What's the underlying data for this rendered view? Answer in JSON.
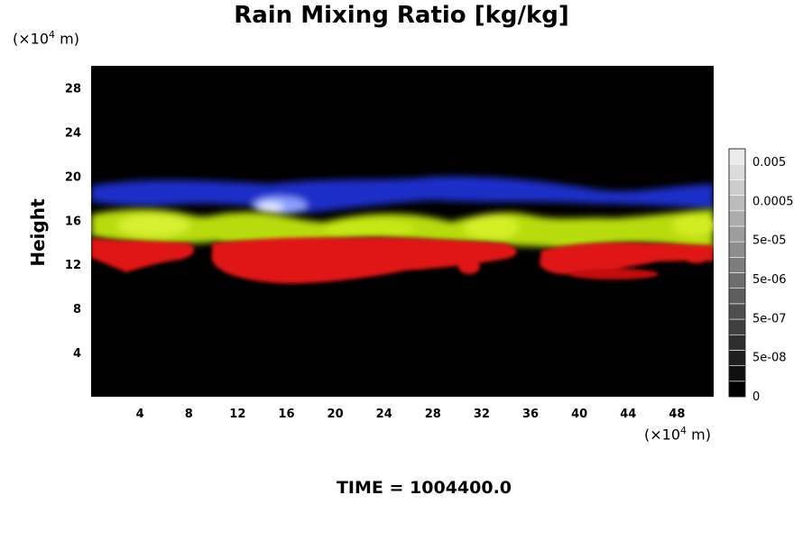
{
  "chart_data": {
    "type": "heatmap",
    "title": "Rain Mixing Ratio [kg/kg]",
    "ylabel": "Height",
    "x_unit_prefix": "(×10",
    "x_unit_exp": "4",
    "x_unit_suffix": " m)",
    "y_unit_prefix": "(×10",
    "y_unit_exp": "4",
    "y_unit_suffix": " m)",
    "xlim": [
      0,
      51
    ],
    "ylim": [
      0,
      30
    ],
    "x_ticks": [
      "4",
      "8",
      "12",
      "16",
      "20",
      "24",
      "28",
      "32",
      "36",
      "40",
      "44",
      "48"
    ],
    "y_ticks": [
      "4",
      "8",
      "12",
      "16",
      "20",
      "24",
      "28"
    ],
    "colorbar": {
      "labels": [
        "0.005",
        "0.0005",
        "5e-05",
        "5e-06",
        "5e-07",
        "5e-08",
        "0"
      ],
      "min": 0,
      "levels": 16
    },
    "layers": [
      {
        "color": "#1a2fd0",
        "height_range": [
          17.5,
          19.5
        ]
      },
      {
        "color": "#b8e000",
        "height_range": [
          14,
          17
        ]
      },
      {
        "color": "#e21010",
        "height_range": [
          10.5,
          14
        ]
      }
    ],
    "time_label": "TIME = 1004400.0"
  }
}
